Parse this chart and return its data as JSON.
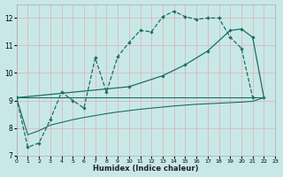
{
  "background_color": "#c8e8e8",
  "grid_color": "#ddb8b8",
  "line_color": "#1a6e62",
  "xlim": [
    0,
    23
  ],
  "ylim": [
    7,
    12.5
  ],
  "xtick_vals": [
    0,
    1,
    2,
    3,
    4,
    5,
    6,
    7,
    8,
    9,
    10,
    11,
    12,
    13,
    14,
    15,
    16,
    17,
    18,
    19,
    20,
    21,
    22,
    23
  ],
  "ytick_vals": [
    7,
    8,
    9,
    10,
    11,
    12
  ],
  "xlabel": "Humidex (Indice chaleur)",
  "series": [
    {
      "x": [
        0,
        1,
        2,
        3,
        4,
        5,
        6,
        7,
        8,
        9,
        10,
        11,
        12,
        13,
        14,
        15,
        16,
        17,
        18,
        19,
        20,
        21
      ],
      "y": [
        9.1,
        7.3,
        7.45,
        8.3,
        9.3,
        9.0,
        8.72,
        10.55,
        9.3,
        10.6,
        11.1,
        11.55,
        11.5,
        12.05,
        12.25,
        12.05,
        11.95,
        12.0,
        12.0,
        11.3,
        10.9,
        9.1
      ],
      "marker": true,
      "linestyle": "--",
      "lw": 0.9
    },
    {
      "x": [
        0,
        1,
        2,
        3,
        4,
        5,
        6,
        7,
        8,
        9,
        10,
        11,
        12,
        13,
        14,
        15,
        16,
        17,
        18,
        19,
        20,
        21,
        22
      ],
      "y": [
        9.1,
        7.75,
        7.9,
        8.1,
        8.2,
        8.3,
        8.38,
        8.45,
        8.52,
        8.58,
        8.63,
        8.68,
        8.72,
        8.76,
        8.8,
        8.83,
        8.86,
        8.88,
        8.9,
        8.92,
        8.94,
        8.97,
        9.1
      ],
      "marker": false,
      "linestyle": "-",
      "lw": 0.8
    },
    {
      "x": [
        0,
        22
      ],
      "y": [
        9.1,
        9.1
      ],
      "marker": false,
      "linestyle": "-",
      "lw": 0.8
    },
    {
      "x": [
        0,
        10,
        13,
        15,
        17,
        19,
        20,
        21,
        22
      ],
      "y": [
        9.1,
        9.5,
        9.9,
        10.3,
        10.8,
        11.55,
        11.6,
        11.3,
        9.1
      ],
      "marker": true,
      "linestyle": "-",
      "lw": 0.9
    }
  ]
}
